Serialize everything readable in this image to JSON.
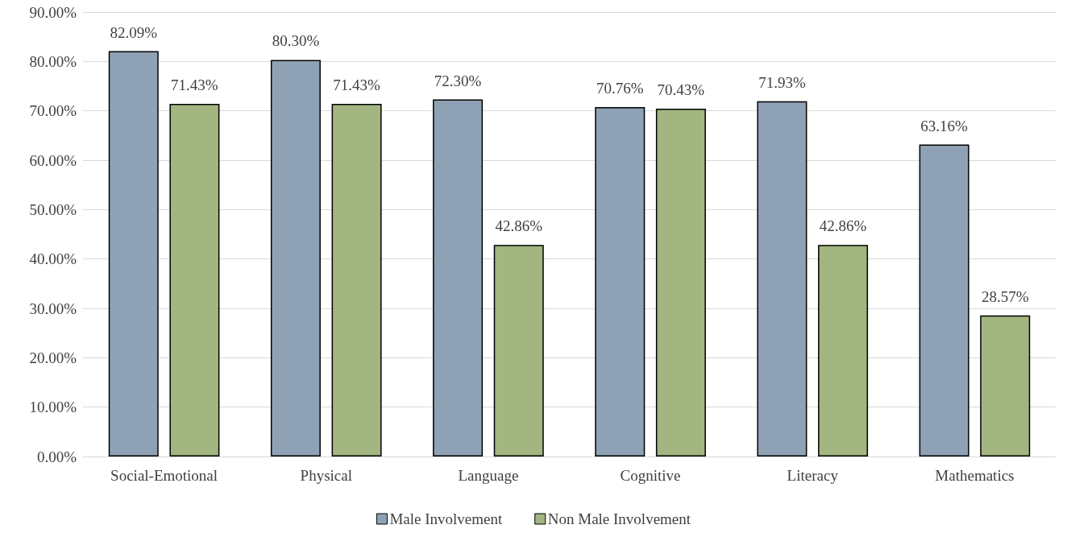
{
  "chart_data": {
    "type": "bar",
    "categories": [
      "Social-Emotional",
      "Physical",
      "Language",
      "Cognitive",
      "Literacy",
      "Mathematics"
    ],
    "series": [
      {
        "name": "Male Involvement",
        "color": "#8fa2b5",
        "values": [
          82.09,
          80.3,
          72.3,
          70.76,
          71.93,
          63.16
        ],
        "value_labels": [
          "82.09%",
          "80.30%",
          "72.30%",
          "70.76%",
          "71.93%",
          "63.16%"
        ]
      },
      {
        "name": "Non Male Involvement",
        "color": "#a3b580",
        "values": [
          71.43,
          71.43,
          42.86,
          70.43,
          42.86,
          28.57
        ],
        "value_labels": [
          "71.43%",
          "71.43%",
          "42.86%",
          "70.43%",
          "42.86%",
          "28.57%"
        ]
      }
    ],
    "ylim": [
      0,
      90
    ],
    "yticks": [
      {
        "value": 0,
        "label": "0.00%"
      },
      {
        "value": 10,
        "label": "10.00%"
      },
      {
        "value": 20,
        "label": "20.00%"
      },
      {
        "value": 30,
        "label": "30.00%"
      },
      {
        "value": 40,
        "label": "40.00%"
      },
      {
        "value": 50,
        "label": "50.00%"
      },
      {
        "value": 60,
        "label": "60.00%"
      },
      {
        "value": 70,
        "label": "70.00%"
      },
      {
        "value": 80,
        "label": "80.00%"
      },
      {
        "value": 90,
        "label": "90.00%"
      }
    ],
    "grid": "y",
    "legend": "bottom"
  }
}
